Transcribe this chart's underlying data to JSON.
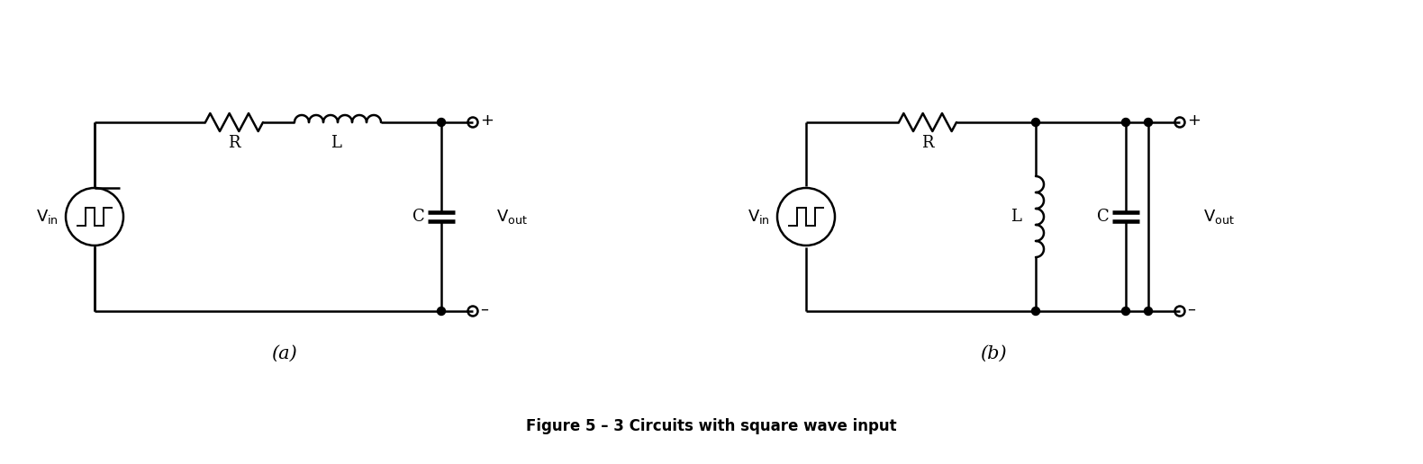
{
  "title": "Figure 5 – 3 Circuits with square wave input",
  "title_fontsize": 12,
  "title_fontweight": "bold",
  "bg_color": "#ffffff",
  "line_color": "#000000",
  "line_width": 1.8,
  "circuit_a_label": "(a)",
  "circuit_b_label": "(b)"
}
